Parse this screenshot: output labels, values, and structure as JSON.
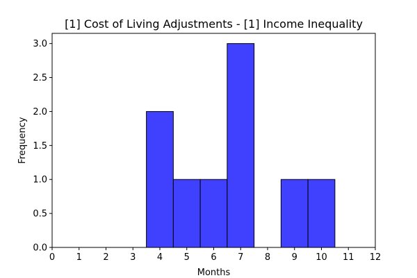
{
  "chart_data": {
    "type": "bar",
    "title": "[1] Cost of Living Adjustments - [1] Income Inequality",
    "xlabel": "Months",
    "ylabel": "Frequency",
    "xlim": [
      0,
      12
    ],
    "ylim": [
      0,
      3.15
    ],
    "xticks": [
      "0",
      "1",
      "2",
      "3",
      "4",
      "5",
      "6",
      "7",
      "8",
      "9",
      "10",
      "11",
      "12"
    ],
    "yticks": [
      "0.0",
      "0.5",
      "1.0",
      "1.5",
      "2.0",
      "2.5",
      "3.0"
    ],
    "bins": [
      {
        "center": 4,
        "value": 2
      },
      {
        "center": 5,
        "value": 1
      },
      {
        "center": 6,
        "value": 1
      },
      {
        "center": 7,
        "value": 3
      },
      {
        "center": 9,
        "value": 1
      },
      {
        "center": 10,
        "value": 1
      }
    ],
    "bin_width": 1,
    "bar_color": "#4040ff",
    "edge_color": "#000000",
    "grid": false,
    "legend": "none"
  }
}
